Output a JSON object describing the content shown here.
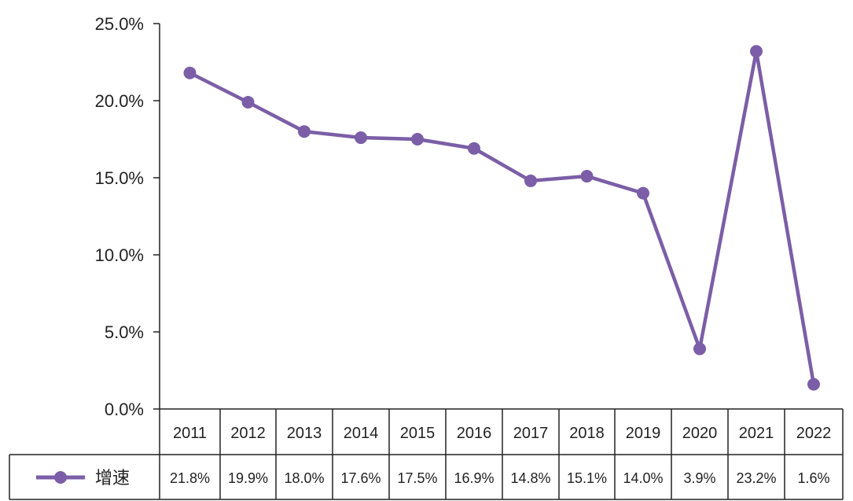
{
  "chart_data": {
    "type": "line",
    "title": "",
    "xlabel": "",
    "ylabel": "",
    "categories": [
      "2011",
      "2012",
      "2013",
      "2014",
      "2015",
      "2016",
      "2017",
      "2018",
      "2019",
      "2020",
      "2021",
      "2022"
    ],
    "series": [
      {
        "name": "增速",
        "values": [
          21.8,
          19.9,
          18.0,
          17.6,
          17.5,
          16.9,
          14.8,
          15.1,
          14.0,
          3.9,
          23.2,
          1.6
        ],
        "labels": [
          "21.8%",
          "19.9%",
          "18.0%",
          "17.6%",
          "17.5%",
          "16.9%",
          "14.8%",
          "15.1%",
          "14.0%",
          "3.9%",
          "23.2%",
          "1.6%"
        ],
        "color": "#7B5EA7"
      }
    ],
    "yticks": [
      "0.0%",
      "5.0%",
      "10.0%",
      "15.0%",
      "20.0%",
      "25.0%"
    ],
    "ylim": [
      0,
      25
    ],
    "grid": false,
    "legend": "data-table-left"
  }
}
